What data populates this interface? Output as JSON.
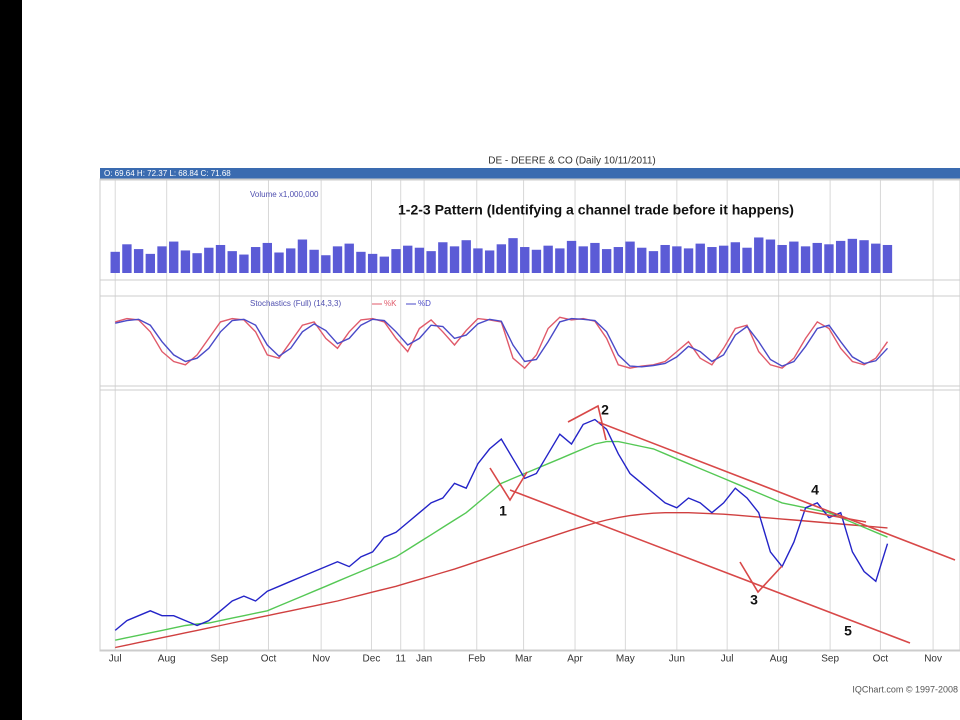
{
  "header": {
    "title": "DE - DEERE & CO (Daily 10/11/2011)",
    "ohlc": "O: 69.64  H: 72.37  L: 68.84  C: 71.68"
  },
  "footer": "IQChart.com © 1997-2008",
  "chart_data": [
    {
      "type": "bar",
      "title": "Volume x1,000,000",
      "color": "#5b5bd6",
      "xlim": [
        -1.3,
        72.2
      ],
      "ylim": [
        0,
        6
      ],
      "x": [
        0,
        1,
        2,
        3,
        4,
        5,
        6,
        7,
        8,
        9,
        10,
        11,
        12,
        13,
        14,
        15,
        16,
        17,
        18,
        19,
        20,
        21,
        22,
        23,
        24,
        25,
        26,
        27,
        28,
        29,
        30,
        31,
        32,
        33,
        34,
        35,
        36,
        37,
        38,
        39,
        40,
        41,
        42,
        43,
        44,
        45,
        46,
        47,
        48,
        49,
        50,
        51,
        52,
        53,
        54,
        55,
        56,
        57,
        58,
        59,
        60,
        61,
        62,
        63,
        64,
        65,
        66
      ],
      "values": [
        3.1,
        4.2,
        3.5,
        2.8,
        3.9,
        4.6,
        3.3,
        2.9,
        3.7,
        4.1,
        3.2,
        2.7,
        3.8,
        4.4,
        3.0,
        3.6,
        4.9,
        3.4,
        2.6,
        3.9,
        4.3,
        3.1,
        2.8,
        2.4,
        3.5,
        4.0,
        3.7,
        3.2,
        4.5,
        3.9,
        4.8,
        3.6,
        3.3,
        4.2,
        5.1,
        3.8,
        3.4,
        4.0,
        3.6,
        4.7,
        3.9,
        4.4,
        3.5,
        3.8,
        4.6,
        3.7,
        3.2,
        4.1,
        3.9,
        3.6,
        4.3,
        3.8,
        4.0,
        4.5,
        3.7,
        5.2,
        4.9,
        4.1,
        4.6,
        3.9,
        4.4,
        4.2,
        4.7,
        5.0,
        4.8,
        4.3,
        4.1
      ]
    },
    {
      "type": "line",
      "title": "Stochastics (Full) (14,3,3)",
      "xlim": [
        -1.3,
        72.2
      ],
      "ylim": [
        0,
        100
      ],
      "x": [
        0,
        1,
        2,
        3,
        4,
        5,
        6,
        7,
        8,
        9,
        10,
        11,
        12,
        13,
        14,
        15,
        16,
        17,
        18,
        19,
        20,
        21,
        22,
        23,
        24,
        25,
        26,
        27,
        28,
        29,
        30,
        31,
        32,
        33,
        34,
        35,
        36,
        37,
        38,
        39,
        40,
        41,
        42,
        43,
        44,
        45,
        46,
        47,
        48,
        49,
        50,
        51,
        52,
        53,
        54,
        55,
        56,
        57,
        58,
        59,
        60,
        61,
        62,
        63,
        64,
        65,
        66
      ],
      "series": [
        {
          "name": "%K",
          "color": "#e05a6a",
          "values": [
            85,
            90,
            88,
            70,
            40,
            25,
            20,
            35,
            60,
            85,
            90,
            88,
            70,
            35,
            30,
            55,
            80,
            85,
            60,
            45,
            70,
            88,
            90,
            85,
            60,
            40,
            75,
            88,
            70,
            50,
            72,
            90,
            88,
            85,
            30,
            15,
            35,
            75,
            92,
            88,
            90,
            86,
            60,
            20,
            15,
            18,
            20,
            25,
            40,
            55,
            30,
            20,
            45,
            75,
            80,
            40,
            20,
            15,
            30,
            60,
            85,
            75,
            45,
            25,
            20,
            30,
            55
          ]
        },
        {
          "name": "%D",
          "color": "#4a4ac8",
          "values": [
            83,
            87,
            89,
            80,
            55,
            35,
            25,
            30,
            45,
            70,
            87,
            89,
            80,
            50,
            33,
            45,
            70,
            82,
            72,
            52,
            60,
            80,
            89,
            87,
            70,
            50,
            60,
            80,
            78,
            60,
            65,
            82,
            89,
            86,
            50,
            25,
            28,
            55,
            85,
            90,
            89,
            87,
            70,
            35,
            18,
            17,
            19,
            22,
            32,
            48,
            40,
            25,
            35,
            65,
            78,
            55,
            28,
            18,
            25,
            48,
            75,
            80,
            55,
            32,
            22,
            26,
            45
          ]
        }
      ]
    },
    {
      "type": "line",
      "title": "1-2-3 Pattern (Identifying a channel trade before it happens)",
      "xlim": [
        -1.3,
        72.2
      ],
      "ylim": [
        50,
        102
      ],
      "xticks": [
        {
          "value": 0,
          "label": "Jul"
        },
        {
          "value": 4.4,
          "label": "Aug"
        },
        {
          "value": 8.9,
          "label": "Sep"
        },
        {
          "value": 13.1,
          "label": "Oct"
        },
        {
          "value": 17.6,
          "label": "Nov"
        },
        {
          "value": 21.9,
          "label": "Dec"
        },
        {
          "value": 24.4,
          "label": "11"
        },
        {
          "value": 26.4,
          "label": "Jan"
        },
        {
          "value": 30.9,
          "label": "Feb"
        },
        {
          "value": 34.9,
          "label": "Mar"
        },
        {
          "value": 39.3,
          "label": "Apr"
        },
        {
          "value": 43.6,
          "label": "May"
        },
        {
          "value": 48,
          "label": "Jun"
        },
        {
          "value": 52.3,
          "label": "Jul"
        },
        {
          "value": 56.7,
          "label": "Aug"
        },
        {
          "value": 61.1,
          "label": "Sep"
        },
        {
          "value": 65.4,
          "label": "Oct"
        },
        {
          "value": 69.9,
          "label": "Nov"
        }
      ],
      "annotations": [
        "1",
        "2",
        "3",
        "4",
        "5"
      ],
      "x": [
        0,
        1,
        2,
        3,
        4,
        5,
        6,
        7,
        8,
        9,
        10,
        11,
        12,
        13,
        14,
        15,
        16,
        17,
        18,
        19,
        20,
        21,
        22,
        23,
        24,
        25,
        26,
        27,
        28,
        29,
        30,
        31,
        32,
        33,
        34,
        35,
        36,
        37,
        38,
        39,
        40,
        41,
        42,
        43,
        44,
        45,
        46,
        47,
        48,
        49,
        50,
        51,
        52,
        53,
        54,
        55,
        56,
        57,
        58,
        59,
        60,
        61,
        62,
        63,
        64,
        65,
        66
      ],
      "series": [
        {
          "color": "#d04040",
          "values": [
            50.5,
            51,
            51.5,
            52,
            52.5,
            53,
            53.5,
            54,
            54.5,
            55,
            55.5,
            56,
            56.5,
            57,
            57.5,
            58,
            58.5,
            59,
            59.5,
            60,
            60.6,
            61.2,
            61.8,
            62.4,
            63,
            63.7,
            64.4,
            65.1,
            65.8,
            66.5,
            67.3,
            68.1,
            68.9,
            69.7,
            70.5,
            71.3,
            72.1,
            72.9,
            73.7,
            74.5,
            75.2,
            75.9,
            76.5,
            77,
            77.4,
            77.7,
            77.9,
            78,
            78,
            78,
            77.9,
            77.8,
            77.7,
            77.5,
            77.3,
            77.1,
            76.9,
            76.7,
            76.5,
            76.3,
            76.1,
            75.9,
            75.7,
            75.5,
            75.3,
            75.1,
            74.9
          ]
        },
        {
          "color": "#55c855",
          "values": [
            52,
            52.5,
            53,
            53.5,
            54,
            54.5,
            55,
            55.3,
            55.5,
            56,
            56.5,
            57,
            57.5,
            58,
            59,
            60,
            61,
            62,
            63,
            64,
            65,
            66,
            67,
            68,
            69,
            70.5,
            72,
            73.5,
            75,
            76.5,
            78,
            80,
            82,
            84,
            85,
            86,
            87,
            88,
            89,
            90,
            91,
            92,
            92.5,
            92.5,
            92,
            91.5,
            91,
            90,
            89,
            88,
            87,
            86,
            85,
            84,
            83,
            82,
            81,
            80,
            79.5,
            79,
            78.5,
            78,
            77,
            76,
            75,
            74,
            73
          ]
        },
        {
          "color": "#2424c8",
          "values": [
            54,
            56,
            57,
            58,
            57,
            57,
            56,
            55,
            56,
            58,
            60,
            61,
            60,
            62,
            63,
            64,
            65,
            66,
            67,
            68,
            67,
            69,
            70,
            73,
            74,
            76,
            78,
            80,
            81,
            84,
            83,
            88,
            91,
            93,
            89,
            85,
            86,
            90,
            94,
            92,
            96,
            97,
            95,
            90,
            86,
            84,
            82,
            80,
            79,
            81,
            80,
            78,
            80,
            83,
            81,
            78,
            70,
            67,
            72,
            79,
            80,
            77,
            78,
            70,
            66,
            64,
            71.68
          ]
        }
      ]
    }
  ]
}
